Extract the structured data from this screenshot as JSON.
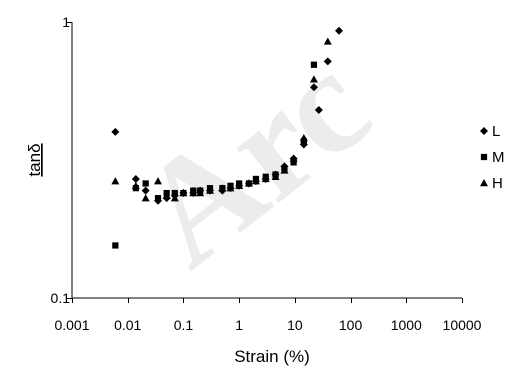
{
  "watermark": "Arc",
  "chart_data": {
    "type": "scatter",
    "xlabel": "Strain (%)",
    "ylabel": "tanδ",
    "x_scale": "log",
    "y_scale": "log",
    "xlim": [
      0.001,
      10000
    ],
    "ylim": [
      0.1,
      1
    ],
    "x_ticks": [
      0.001,
      0.01,
      0.1,
      1,
      10,
      100,
      1000,
      10000
    ],
    "x_tick_labels": [
      "0.001",
      "0.01",
      "0.1",
      "1",
      "10",
      "100",
      "1000",
      "10000"
    ],
    "y_ticks": [
      0.1,
      1
    ],
    "y_tick_labels": [
      "0.1",
      "1"
    ],
    "grid": false,
    "legend": "right",
    "colors": {
      "markers": "#000000",
      "watermark": "#ececec"
    },
    "series": [
      {
        "name": "L",
        "marker": "diamond",
        "x": [
          0.006,
          0.014,
          0.021,
          0.035,
          0.05,
          0.07,
          0.1,
          0.15,
          0.2,
          0.3,
          0.5,
          0.7,
          1.0,
          1.5,
          2.0,
          3.0,
          4.5,
          6.5,
          9.5,
          14.5,
          22,
          27,
          39,
          62
        ],
        "y": [
          0.4,
          0.27,
          0.245,
          0.225,
          0.23,
          0.235,
          0.24,
          0.24,
          0.245,
          0.245,
          0.245,
          0.25,
          0.255,
          0.26,
          0.265,
          0.27,
          0.28,
          0.3,
          0.32,
          0.36,
          0.58,
          0.48,
          0.72,
          0.93
        ]
      },
      {
        "name": "M",
        "marker": "square",
        "x": [
          0.006,
          0.014,
          0.021,
          0.035,
          0.05,
          0.07,
          0.1,
          0.15,
          0.2,
          0.3,
          0.5,
          0.7,
          1.0,
          1.5,
          2.0,
          3.0,
          4.5,
          6.5,
          9.5,
          14.5,
          22
        ],
        "y": [
          0.155,
          0.25,
          0.26,
          0.23,
          0.24,
          0.24,
          0.24,
          0.245,
          0.245,
          0.25,
          0.25,
          0.255,
          0.26,
          0.26,
          0.27,
          0.275,
          0.28,
          0.29,
          0.31,
          0.37,
          0.7
        ]
      },
      {
        "name": "H",
        "marker": "triangle",
        "x": [
          0.006,
          0.014,
          0.021,
          0.035,
          0.05,
          0.07,
          0.1,
          0.15,
          0.2,
          0.3,
          0.5,
          0.7,
          1.0,
          1.5,
          2.0,
          3.0,
          4.5,
          6.5,
          9.5,
          14.5,
          22,
          39
        ],
        "y": [
          0.265,
          0.255,
          0.23,
          0.265,
          0.235,
          0.23,
          0.24,
          0.24,
          0.24,
          0.245,
          0.25,
          0.25,
          0.255,
          0.26,
          0.265,
          0.27,
          0.275,
          0.29,
          0.32,
          0.38,
          0.62,
          0.85
        ]
      }
    ]
  }
}
